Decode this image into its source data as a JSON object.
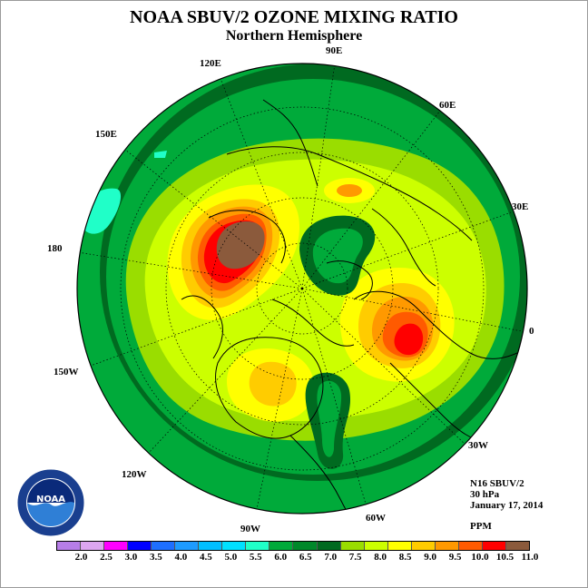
{
  "title": "NOAA SBUV/2 OZONE MIXING RATIO",
  "subtitle": "Northern Hemisphere",
  "info": {
    "instrument": "N16 SBUV/2",
    "level": "30 hPa",
    "date": "January 17, 2014",
    "units": "PPM"
  },
  "longitude_labels": [
    "90E",
    "60E",
    "30E",
    "0",
    "30W",
    "60W",
    "90W",
    "120W",
    "150W",
    "180",
    "150E",
    "120E"
  ],
  "logo": {
    "text": "NOAA"
  },
  "colorbar": {
    "ticks": [
      "2.0",
      "2.5",
      "3.0",
      "3.5",
      "4.0",
      "4.5",
      "5.0",
      "5.5",
      "6.0",
      "6.5",
      "7.0",
      "7.5",
      "8.0",
      "8.5",
      "9.0",
      "9.5",
      "10.0",
      "10.5",
      "11.0"
    ],
    "colors": [
      "#b77ee8",
      "#dda6f0",
      "#ff00ff",
      "#0000ff",
      "#1e6fff",
      "#1e9bff",
      "#00bfff",
      "#00e0ff",
      "#20ffc8",
      "#00aa3a",
      "#00882a",
      "#006a20",
      "#9add00",
      "#ccff00",
      "#ffff00",
      "#ffcc00",
      "#ff9900",
      "#ff5a00",
      "#ff0000",
      "#8b5a3c"
    ]
  },
  "map_colors": {
    "ocean_band": "#006a20",
    "level_6_5": "#00aa3a",
    "level_7_0": "#00882a",
    "level_7_5": "#9add00",
    "level_8_0": "#ccff00",
    "level_8_5": "#ffff00",
    "level_9_0": "#ffcc00",
    "level_9_5": "#ff9900",
    "level_10_0": "#ff5a00",
    "level_10_5": "#ff0000",
    "level_11_0": "#8b5a3c",
    "level_5_5": "#20ffc8"
  }
}
